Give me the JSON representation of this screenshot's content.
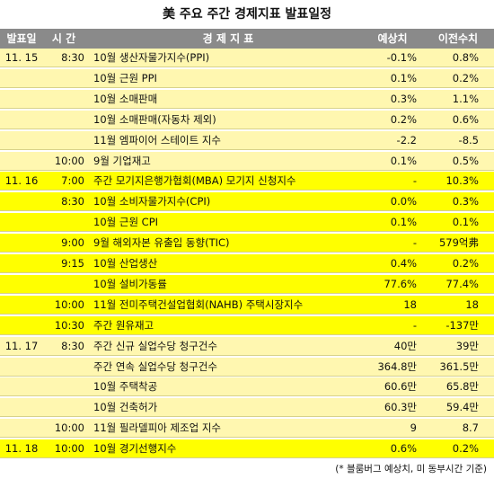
{
  "title": "美 주요 주간 경제지표 발표일정",
  "header": {
    "date": "발표일",
    "time": "시 간",
    "indicator": "경 제 지 표",
    "forecast": "예상치",
    "previous": "이전수치"
  },
  "rows": [
    {
      "date": "11. 15",
      "time": "8:30",
      "indicator": "10월 생산자물가지수(PPI)",
      "forecast": "-0.1%",
      "previous": "0.8%",
      "bg": "light"
    },
    {
      "date": "",
      "time": "",
      "indicator": "10월 근원 PPI",
      "forecast": "0.1%",
      "previous": "0.2%",
      "bg": "light"
    },
    {
      "date": "",
      "time": "",
      "indicator": "10월 소매판매",
      "forecast": "0.3%",
      "previous": "1.1%",
      "bg": "light"
    },
    {
      "date": "",
      "time": "",
      "indicator": "10월 소매판매(자동차 제외)",
      "forecast": "0.2%",
      "previous": "0.6%",
      "bg": "light"
    },
    {
      "date": "",
      "time": "",
      "indicator": "11월 엠파이어 스테이트 지수",
      "forecast": "-2.2",
      "previous": "-8.5",
      "bg": "light"
    },
    {
      "date": "",
      "time": "10:00",
      "indicator": "9월 기업재고",
      "forecast": "0.1%",
      "previous": "0.5%",
      "bg": "light"
    },
    {
      "date": "11. 16",
      "time": "7:00",
      "indicator": "주간 모기지은행가협회(MBA) 모기지 신청지수",
      "forecast": "-",
      "previous": "10.3%",
      "bg": "bright"
    },
    {
      "date": "",
      "time": "8:30",
      "indicator": "10월 소비자물가지수(CPI)",
      "forecast": "0.0%",
      "previous": "0.3%",
      "bg": "bright"
    },
    {
      "date": "",
      "time": "",
      "indicator": "10월 근원 CPI",
      "forecast": "0.1%",
      "previous": "0.1%",
      "bg": "bright"
    },
    {
      "date": "",
      "time": "9:00",
      "indicator": "9월 해외자본 유출입 동향(TIC)",
      "forecast": "-",
      "previous": "579억弗",
      "bg": "bright"
    },
    {
      "date": "",
      "time": "9:15",
      "indicator": "10월 산업생산",
      "forecast": "0.4%",
      "previous": "0.2%",
      "bg": "bright"
    },
    {
      "date": "",
      "time": "",
      "indicator": "10월 설비가동률",
      "forecast": "77.6%",
      "previous": "77.4%",
      "bg": "bright"
    },
    {
      "date": "",
      "time": "10:00",
      "indicator": "11월 전미주택건설업협회(NAHB) 주택시장지수",
      "forecast": "18",
      "previous": "18",
      "bg": "bright"
    },
    {
      "date": "",
      "time": "10:30",
      "indicator": "주간 원유재고",
      "forecast": "-",
      "previous": "-137만",
      "bg": "bright"
    },
    {
      "date": "11. 17",
      "time": "8:30",
      "indicator": "주간 신규 실업수당 청구건수",
      "forecast": "40만",
      "previous": "39만",
      "bg": "light"
    },
    {
      "date": "",
      "time": "",
      "indicator": "주간 연속 실업수당 청구건수",
      "forecast": "364.8만",
      "previous": "361.5만",
      "bg": "light"
    },
    {
      "date": "",
      "time": "",
      "indicator": "10월 주택착공",
      "forecast": "60.6만",
      "previous": "65.8만",
      "bg": "light"
    },
    {
      "date": "",
      "time": "",
      "indicator": "10월 건축허가",
      "forecast": "60.3만",
      "previous": "59.4만",
      "bg": "light"
    },
    {
      "date": "",
      "time": "10:00",
      "indicator": "11월 필라델피아 제조업 지수",
      "forecast": "9",
      "previous": "8.7",
      "bg": "light"
    },
    {
      "date": "11. 18",
      "time": "10:00",
      "indicator": "10월 경기선행지수",
      "forecast": "0.6%",
      "previous": "0.2%",
      "bg": "bright"
    }
  ],
  "note": "(* 블룸버그 예상치, 미 동부시간 기준)",
  "colors": {
    "header_bg": "#8a8a8a",
    "light_row": "#fff7b0",
    "bright_row": "#ffff00"
  }
}
